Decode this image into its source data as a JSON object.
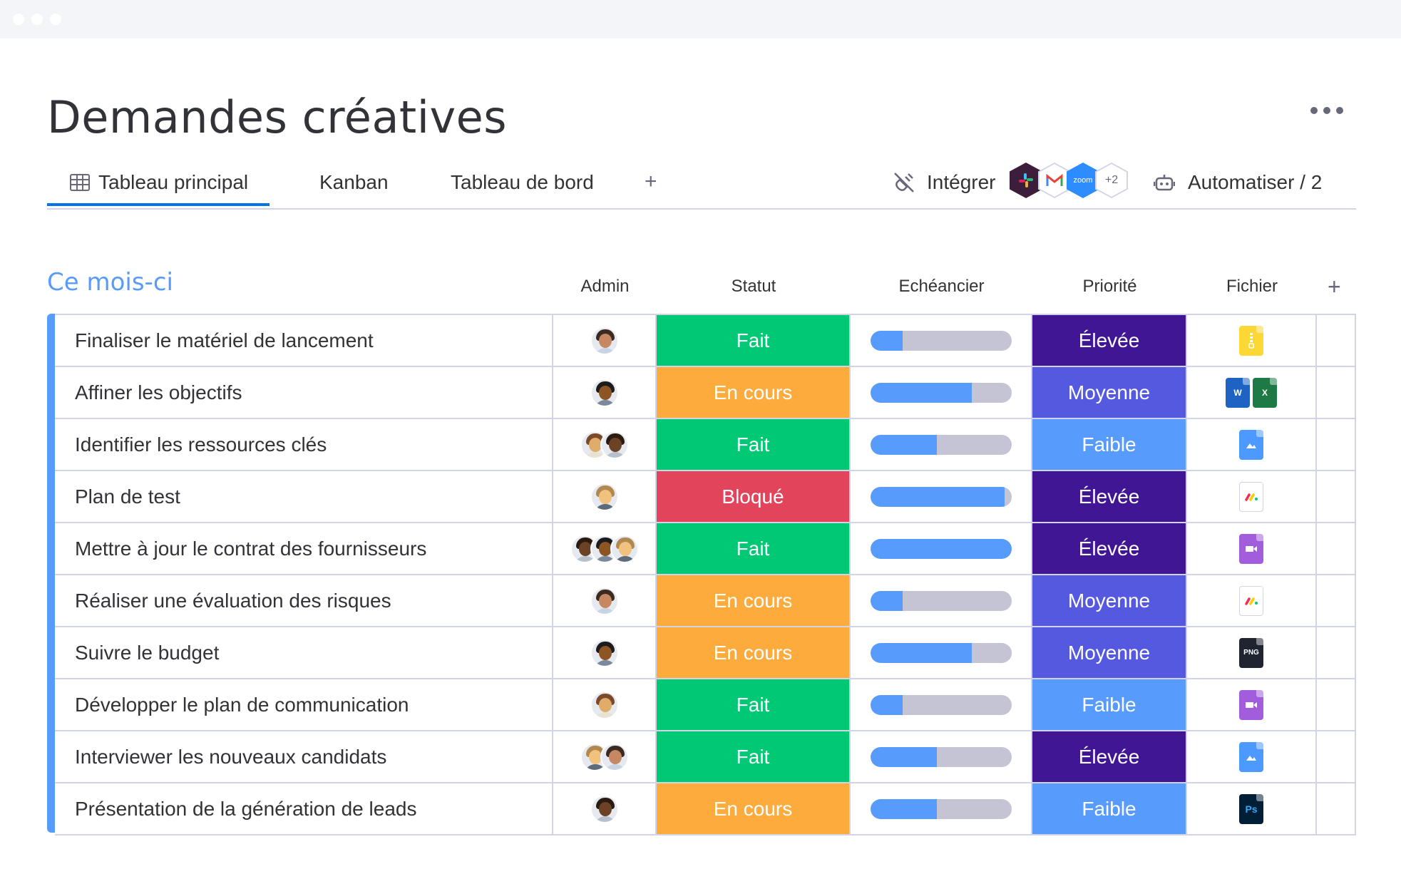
{
  "page": {
    "title": "Demandes créatives",
    "more_icon": "more-horizontal-icon"
  },
  "tabs": [
    {
      "label": "Tableau principal",
      "icon": "table-grid-icon",
      "active": true
    },
    {
      "label": "Kanban",
      "active": false
    },
    {
      "label": "Tableau de bord",
      "active": false
    }
  ],
  "tab_add": "+",
  "integrations": {
    "label": "Intégrer",
    "icon": "plug-off-icon",
    "apps": [
      "slack-icon",
      "gmail-icon",
      "zoom",
      "+2"
    ]
  },
  "automate": {
    "label": "Automatiser / 2",
    "icon": "robot-icon"
  },
  "group": {
    "title": "Ce mois-ci",
    "color": "#579bfc"
  },
  "columns": {
    "admin": "Admin",
    "status": "Statut",
    "timeline": "Echéancier",
    "priority": "Priorité",
    "file": "Fichier",
    "add": "+"
  },
  "colors": {
    "Fait": "#00c875",
    "En cours": "#fdab3d",
    "Bloqué": "#e2445c",
    "Élevée": "#401694",
    "Moyenne": "#5559df",
    "Faible": "#579bfc"
  },
  "rows": [
    {
      "name": "Finaliser le matériel de lancement",
      "admins": 1,
      "status": "Fait",
      "progress": 0.23,
      "priority": "Élevée",
      "file": "zip"
    },
    {
      "name": "Affiner les objectifs",
      "admins": 1,
      "status": "En cours",
      "progress": 0.72,
      "priority": "Moyenne",
      "file": "word-excel"
    },
    {
      "name": "Identifier les ressources clés",
      "admins": 2,
      "status": "Fait",
      "progress": 0.47,
      "priority": "Faible",
      "file": "image"
    },
    {
      "name": "Plan de test",
      "admins": 1,
      "status": "Bloqué",
      "progress": 0.95,
      "priority": "Élevée",
      "file": "monday"
    },
    {
      "name": "Mettre à jour le contrat des fournisseurs",
      "admins": 3,
      "status": "Fait",
      "progress": 1.0,
      "priority": "Élevée",
      "file": "video"
    },
    {
      "name": "Réaliser une évaluation des risques",
      "admins": 1,
      "status": "En cours",
      "progress": 0.23,
      "priority": "Moyenne",
      "file": "monday"
    },
    {
      "name": "Suivre le budget",
      "admins": 1,
      "status": "En cours",
      "progress": 0.72,
      "priority": "Moyenne",
      "file": "png"
    },
    {
      "name": "Développer le plan de  communication",
      "admins": 1,
      "status": "Fait",
      "progress": 0.23,
      "priority": "Faible",
      "file": "video"
    },
    {
      "name": "Interviewer les nouveaux candidats",
      "admins": 2,
      "status": "Fait",
      "progress": 0.47,
      "priority": "Élevée",
      "file": "image"
    },
    {
      "name": "Présentation de la génération de leads",
      "admins": 1,
      "status": "En cours",
      "progress": 0.47,
      "priority": "Faible",
      "file": "ps"
    }
  ],
  "file_labels": {
    "word": "W",
    "excel": "X",
    "png": "PNG",
    "ps": "Ps"
  }
}
